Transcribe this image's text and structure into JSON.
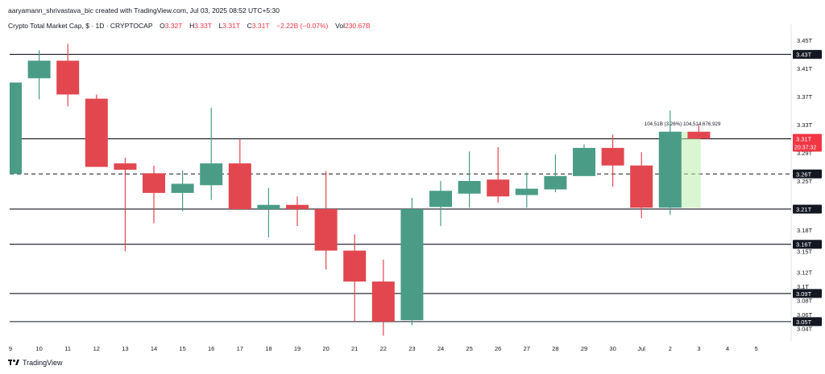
{
  "header": {
    "created_text": "aaryamann_shrivastava_bic created with TradingView.com, Jul 03, 2025 08:52 UTC+5:30",
    "symbol_text": "Crypto Total Market Cap, $ · 1D · CRYPTOCAP",
    "o_label": "O",
    "o_value": "3.32T",
    "h_label": "H",
    "h_value": "3.33T",
    "l_label": "L",
    "l_value": "3.31T",
    "c_label": "C",
    "c_value": "3.31T",
    "change_text": "−2.22B (−0.07%)",
    "vol_label": "Vol",
    "vol_value": "230.67B"
  },
  "footer": {
    "brand": "TradingView",
    "logo_icon": "tradingview-logo-icon"
  },
  "colors": {
    "up": "#4a9c86",
    "down": "#e2474f",
    "line": "#131722",
    "axis_text": "#131722",
    "current_badge": "#f23645",
    "measure_fill": "#b9eea9"
  },
  "chart_data": {
    "type": "candlestick",
    "title": "Crypto Total Market Cap, $ · 1D · CRYPTOCAP",
    "unit": "T",
    "x_labels": [
      "9",
      "10",
      "11",
      "12",
      "13",
      "14",
      "15",
      "16",
      "17",
      "18",
      "19",
      "20",
      "21",
      "22",
      "23",
      "24",
      "25",
      "26",
      "27",
      "28",
      "29",
      "30",
      "Jul",
      "2",
      "3",
      "4",
      "5"
    ],
    "y_ticks": [
      "3.45T",
      "3.41T",
      "3.37T",
      "3.33T",
      "3.29T",
      "3.25T",
      "3.21T",
      "3.18T",
      "3.15T",
      "3.12T",
      "3.1T",
      "3.08T",
      "3.06T",
      "3.04T"
    ],
    "ylim": [
      3.035,
      3.465
    ],
    "candles": [
      {
        "date": "9",
        "open": 3.26,
        "high": 3.39,
        "low": 3.26,
        "close": 3.39
      },
      {
        "date": "10",
        "open": 3.396,
        "high": 3.436,
        "low": 3.366,
        "close": 3.421
      },
      {
        "date": "11",
        "open": 3.421,
        "high": 3.445,
        "low": 3.356,
        "close": 3.373
      },
      {
        "date": "12",
        "open": 3.367,
        "high": 3.373,
        "low": 3.27,
        "close": 3.27
      },
      {
        "date": "13",
        "open": 3.275,
        "high": 3.283,
        "low": 3.15,
        "close": 3.266
      },
      {
        "date": "14",
        "open": 3.261,
        "high": 3.272,
        "low": 3.19,
        "close": 3.233
      },
      {
        "date": "15",
        "open": 3.233,
        "high": 3.265,
        "low": 3.207,
        "close": 3.246
      },
      {
        "date": "16",
        "open": 3.244,
        "high": 3.354,
        "low": 3.223,
        "close": 3.275
      },
      {
        "date": "17",
        "open": 3.275,
        "high": 3.31,
        "low": 3.21,
        "close": 3.21
      },
      {
        "date": "18",
        "open": 3.21,
        "high": 3.24,
        "low": 3.17,
        "close": 3.216
      },
      {
        "date": "19",
        "open": 3.216,
        "high": 3.228,
        "low": 3.186,
        "close": 3.21
      },
      {
        "date": "20",
        "open": 3.21,
        "high": 3.264,
        "low": 3.124,
        "close": 3.151
      },
      {
        "date": "21",
        "open": 3.151,
        "high": 3.174,
        "low": 3.05,
        "close": 3.107
      },
      {
        "date": "22",
        "open": 3.107,
        "high": 3.138,
        "low": 3.03,
        "close": 3.05
      },
      {
        "date": "23",
        "open": 3.052,
        "high": 3.226,
        "low": 3.045,
        "close": 3.21
      },
      {
        "date": "24",
        "open": 3.213,
        "high": 3.25,
        "low": 3.186,
        "close": 3.236
      },
      {
        "date": "25",
        "open": 3.232,
        "high": 3.292,
        "low": 3.212,
        "close": 3.25
      },
      {
        "date": "26",
        "open": 3.252,
        "high": 3.298,
        "low": 3.219,
        "close": 3.228
      },
      {
        "date": "27",
        "open": 3.23,
        "high": 3.262,
        "low": 3.212,
        "close": 3.239
      },
      {
        "date": "28",
        "open": 3.238,
        "high": 3.288,
        "low": 3.234,
        "close": 3.257
      },
      {
        "date": "29",
        "open": 3.257,
        "high": 3.302,
        "low": 3.257,
        "close": 3.297
      },
      {
        "date": "30",
        "open": 3.297,
        "high": 3.316,
        "low": 3.242,
        "close": 3.272
      },
      {
        "date": "Jul",
        "open": 3.272,
        "high": 3.291,
        "low": 3.197,
        "close": 3.212
      },
      {
        "date": "2",
        "open": 3.212,
        "high": 3.35,
        "low": 3.202,
        "close": 3.32
      },
      {
        "date": "3",
        "open": 3.32,
        "high": 3.33,
        "low": 3.31,
        "close": 3.31
      }
    ],
    "horizontal_lines": [
      {
        "value": 3.43,
        "label": "3.43T",
        "style": "solid"
      },
      {
        "value": 3.31,
        "label": "3.31T",
        "style": "solid"
      },
      {
        "value": 3.26,
        "label": "3.26T",
        "style": "dashed"
      },
      {
        "value": 3.21,
        "label": "3.21T",
        "style": "solid"
      },
      {
        "value": 3.16,
        "label": "3.16T",
        "style": "solid"
      },
      {
        "value": 3.09,
        "label": "3.09T",
        "style": "solid"
      },
      {
        "value": 3.05,
        "label": "3.05T",
        "style": "solid"
      }
    ],
    "current_price": {
      "value": 3.31,
      "label": "3.31T",
      "countdown": "20:37:32"
    },
    "measure": {
      "from_value": 3.212,
      "to_value": 3.32,
      "text": "104.51B (3.26%) 104,514,676,929"
    },
    "grid": false
  }
}
